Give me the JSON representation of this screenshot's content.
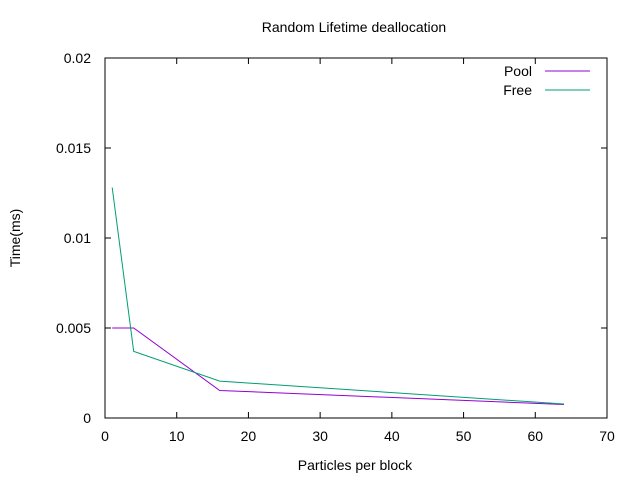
{
  "chart_data": {
    "type": "line",
    "title": "Random Lifetime deallocation",
    "xlabel": "Particles per block",
    "ylabel": "Time(ms)",
    "xlim": [
      0,
      70
    ],
    "ylim": [
      0,
      0.02
    ],
    "xticks": [
      0,
      10,
      20,
      30,
      40,
      50,
      60,
      70
    ],
    "yticks": [
      0,
      0.005,
      0.01,
      0.015,
      0.02
    ],
    "xtick_labels": [
      "0",
      "10",
      "20",
      "30",
      "40",
      "50",
      "60",
      "70"
    ],
    "ytick_labels": [
      "0",
      "0.005",
      "0.01",
      "0.015",
      "0.02"
    ],
    "grid": false,
    "legend_position": "top-right",
    "series": [
      {
        "name": "Pool",
        "color": "#9400d3",
        "x": [
          1,
          4,
          16,
          64
        ],
        "y": [
          0.005,
          0.005,
          0.00153,
          0.00075
        ]
      },
      {
        "name": "Free",
        "color": "#009e73",
        "x": [
          1,
          4,
          16,
          64
        ],
        "y": [
          0.0128,
          0.0037,
          0.00205,
          0.00078
        ]
      }
    ]
  }
}
